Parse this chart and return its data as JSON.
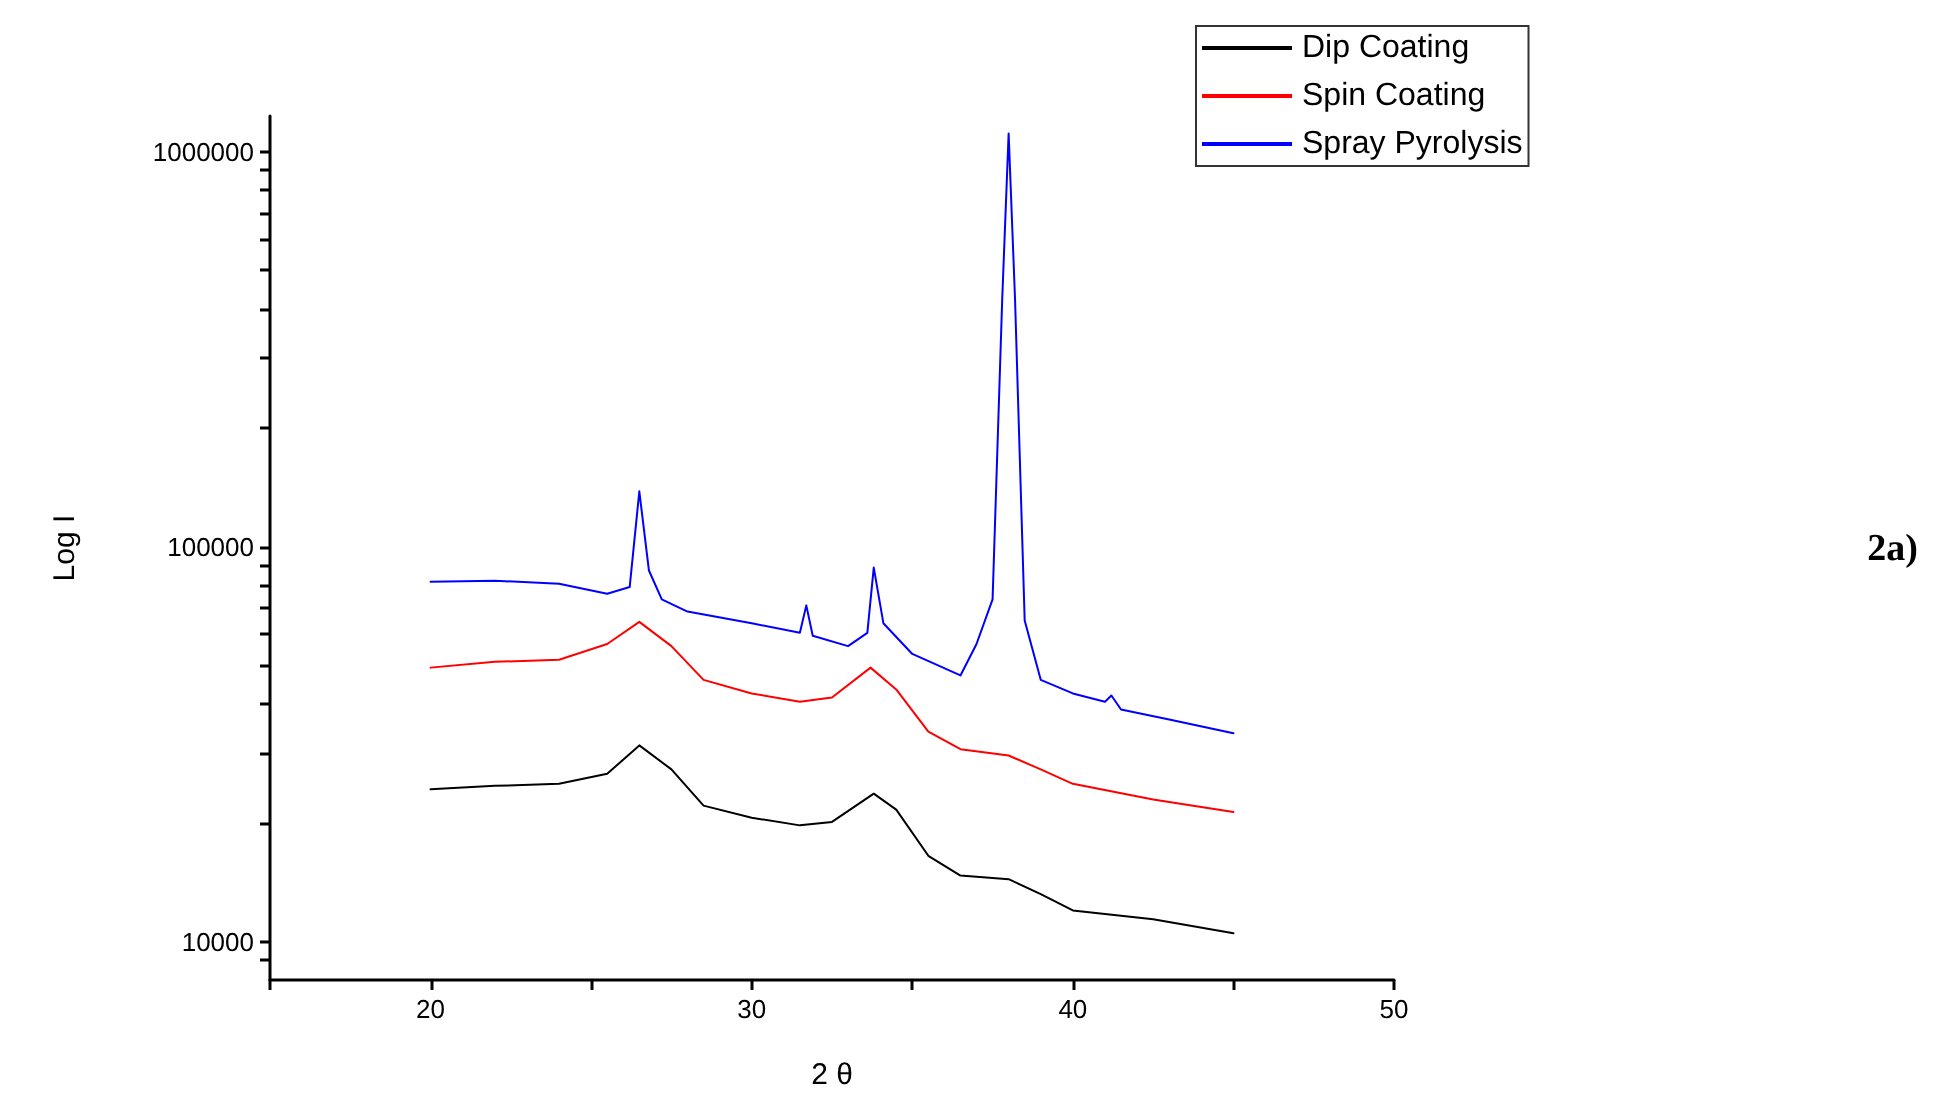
{
  "chart_data": {
    "type": "line",
    "xlabel": "2 θ",
    "ylabel": "Log I",
    "annotations": [
      "2a)"
    ],
    "xlim": [
      15,
      50
    ],
    "xticks": [
      {
        "value": 15,
        "label": null
      },
      20,
      {
        "value": 25,
        "label": null
      },
      30,
      {
        "value": 35,
        "label": null
      },
      40,
      {
        "value": 45,
        "label": null
      },
      50
    ],
    "ylim": [
      8000,
      1230000
    ],
    "log": "y",
    "yticks": [
      {
        "value": 9000,
        "label": null
      },
      10000,
      {
        "value": 20000,
        "label": null
      },
      {
        "value": 30000,
        "label": null
      },
      {
        "value": 40000,
        "label": null
      },
      {
        "value": 50000,
        "label": null
      },
      {
        "value": 60000,
        "label": null
      },
      {
        "value": 70000,
        "label": null
      },
      {
        "value": 80000,
        "label": null
      },
      {
        "value": 90000,
        "label": null
      },
      100000,
      {
        "value": 200000,
        "label": null
      },
      {
        "value": 300000,
        "label": null
      },
      {
        "value": 400000,
        "label": null
      },
      {
        "value": 500000,
        "label": null
      },
      {
        "value": 600000,
        "label": null
      },
      {
        "value": 700000,
        "label": null
      },
      {
        "value": 800000,
        "label": null
      },
      {
        "value": 900000,
        "label": null
      },
      1000000
    ],
    "grid": false,
    "legend": "top right",
    "marker": "none",
    "line_style": "solid",
    "series": [
      {
        "name": "Dip Coating",
        "color": "#000000",
        "x": [
          20,
          22,
          24,
          25.5,
          26.5,
          27.5,
          28.5,
          30,
          31.5,
          32.5,
          33.8,
          34.5,
          35.5,
          36.5,
          38,
          39,
          40,
          42.5,
          45
        ],
        "values": [
          24300,
          24800,
          25100,
          26600,
          31400,
          27300,
          22100,
          20600,
          19700,
          20100,
          23700,
          21600,
          16500,
          14700,
          14400,
          13200,
          12000,
          11400,
          10500
        ]
      },
      {
        "name": "Spin Coating",
        "color": "#ff0000",
        "x": [
          20,
          22,
          24,
          25.5,
          26.5,
          27.5,
          28.5,
          30,
          31.5,
          32.5,
          33.7,
          34.5,
          35.5,
          36.5,
          38,
          39,
          40,
          42.5,
          45
        ],
        "values": [
          49400,
          51100,
          51700,
          56700,
          64500,
          56000,
          46000,
          42500,
          40500,
          41500,
          49400,
          43500,
          34000,
          30700,
          29600,
          27300,
          25100,
          22900,
          21300
        ]
      },
      {
        "name": "Spray Pyrolysis",
        "color": "#0000ff",
        "x": [
          20,
          22,
          24,
          25.5,
          26.2,
          26.5,
          26.8,
          27.2,
          28,
          30,
          31.5,
          31.7,
          31.9,
          33,
          33.6,
          33.8,
          34.1,
          35,
          36.5,
          37,
          37.5,
          37.8,
          38,
          38.2,
          38.5,
          39,
          40,
          41,
          41.2,
          41.5,
          43,
          45
        ],
        "values": [
          81500,
          82000,
          80500,
          76000,
          79000,
          138000,
          87000,
          73500,
          68500,
          64000,
          60500,
          71000,
          59500,
          56000,
          60500,
          88500,
          64000,
          53500,
          47200,
          56700,
          73500,
          422000,
          1110000,
          422000,
          65000,
          46000,
          42500,
          40500,
          42000,
          38700,
          36500,
          33700
        ]
      }
    ]
  }
}
